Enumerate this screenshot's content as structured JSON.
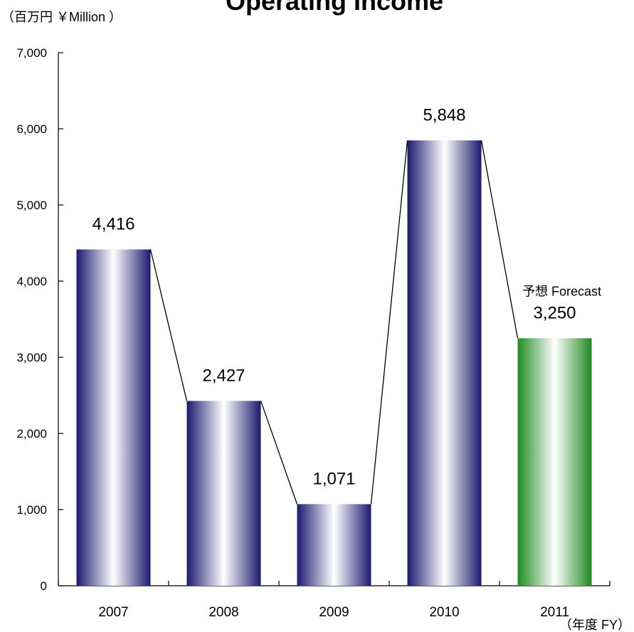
{
  "chart_data": {
    "type": "bar",
    "title": "Operating Income",
    "ylabel": "（百万円 ￥Million ）",
    "xlabel": "（年度 FY）",
    "categories": [
      "2007",
      "2008",
      "2009",
      "2010",
      "2011"
    ],
    "values": [
      4416,
      2427,
      1071,
      5848,
      3250
    ],
    "value_labels": [
      "4,416",
      "2,427",
      "1,071",
      "5,848",
      "3,250"
    ],
    "forecast_index": 4,
    "forecast_label": "予想  Forecast",
    "ylim": [
      0,
      7000
    ],
    "yticks": [
      0,
      1000,
      2000,
      3000,
      4000,
      5000,
      6000,
      7000
    ],
    "ytick_labels": [
      "0",
      "1,000",
      "2,000",
      "3,000",
      "4,000",
      "5,000",
      "6,000",
      "7,000"
    ],
    "connector_lines": true,
    "grid": false,
    "colors": {
      "actual": "#1a1a6e",
      "forecast": "#1f8a1f",
      "highlight": "#ffffff"
    }
  }
}
